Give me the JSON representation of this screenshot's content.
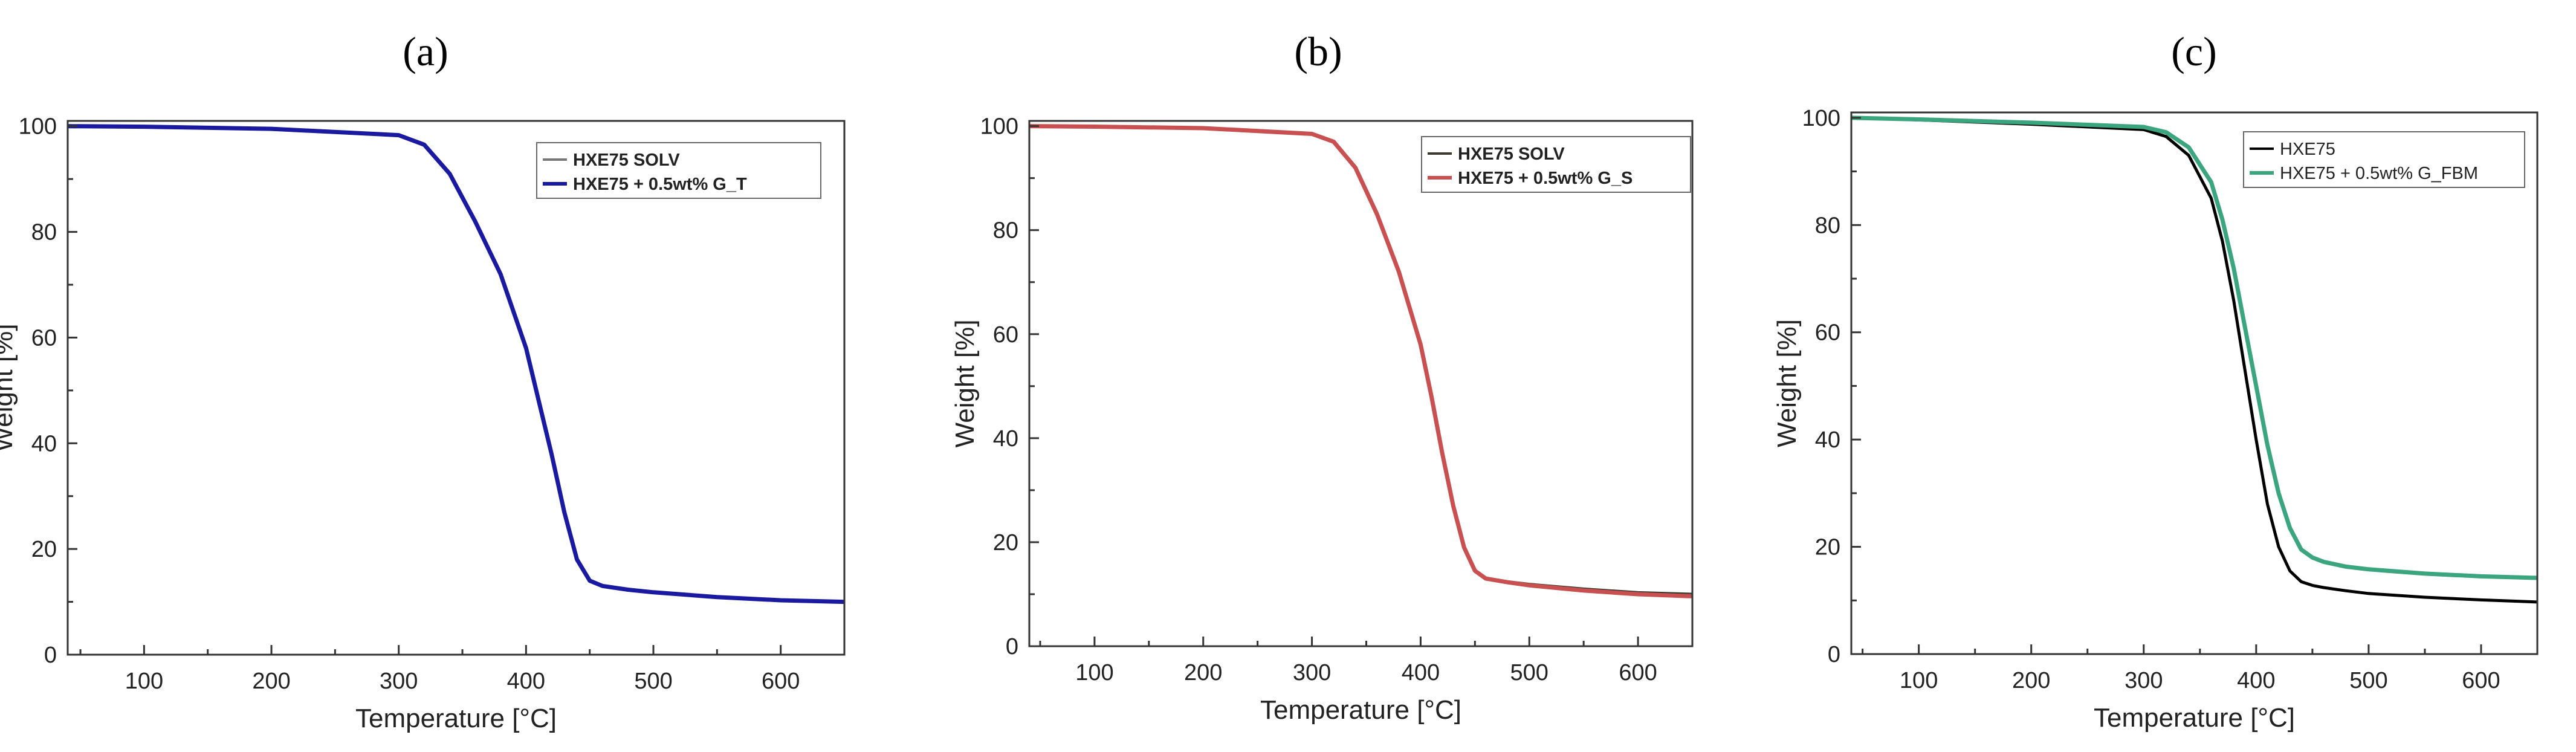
{
  "chart_data": [
    {
      "panel": "(a)",
      "type": "line",
      "xlabel": "Temperature [°C]",
      "ylabel": "Weight [%]",
      "xlim": [
        40,
        650
      ],
      "ylim": [
        0,
        101
      ],
      "xticks": [
        100,
        200,
        300,
        400,
        500,
        600
      ],
      "yticks": [
        0,
        20,
        40,
        60,
        80,
        100
      ],
      "legend_position": "top-right",
      "series": [
        {
          "name": "HXE75 SOLV",
          "color": "#777777",
          "x": [
            40,
            100,
            200,
            300,
            320,
            340,
            360,
            380,
            400,
            410,
            420,
            430,
            440,
            450,
            460,
            480,
            500,
            550,
            600,
            650
          ],
          "y": [
            100,
            99.9,
            99.5,
            98.3,
            96.5,
            91,
            82,
            72,
            58,
            48,
            38,
            27,
            18,
            14,
            13,
            12.3,
            11.8,
            10.9,
            10.3,
            10
          ]
        },
        {
          "name": "HXE75 + 0.5wt% G_T",
          "color": "#1a1aa0",
          "x": [
            40,
            100,
            200,
            300,
            320,
            340,
            360,
            380,
            400,
            410,
            420,
            430,
            440,
            450,
            460,
            480,
            500,
            550,
            600,
            650
          ],
          "y": [
            100,
            99.9,
            99.5,
            98.3,
            96.5,
            91,
            82,
            72,
            58,
            48,
            38,
            27,
            18,
            14,
            13,
            12.3,
            11.8,
            10.9,
            10.3,
            10
          ]
        }
      ]
    },
    {
      "panel": "(b)",
      "type": "line",
      "xlabel": "Temperature [°C]",
      "ylabel": "Weight [%]",
      "xlim": [
        40,
        650
      ],
      "ylim": [
        0,
        101
      ],
      "xticks": [
        100,
        200,
        300,
        400,
        500,
        600
      ],
      "yticks": [
        0,
        20,
        40,
        60,
        80,
        100
      ],
      "legend_position": "top-right",
      "series": [
        {
          "name": "HXE75 SOLV",
          "color": "#3a3a30",
          "x": [
            40,
            100,
            200,
            300,
            320,
            340,
            360,
            380,
            400,
            410,
            420,
            430,
            440,
            450,
            460,
            480,
            500,
            550,
            600,
            650
          ],
          "y": [
            100,
            99.9,
            99.6,
            98.5,
            97,
            92,
            83,
            72,
            58,
            48,
            37,
            27,
            19,
            14.5,
            13,
            12.4,
            11.9,
            11,
            10.3,
            10
          ]
        },
        {
          "name": "HXE75 + 0.5wt% G_S",
          "color": "#c85050",
          "x": [
            40,
            100,
            200,
            300,
            320,
            340,
            360,
            380,
            400,
            410,
            420,
            430,
            440,
            450,
            460,
            480,
            500,
            550,
            600,
            650
          ],
          "y": [
            100,
            99.9,
            99.6,
            98.5,
            97,
            92,
            83,
            72,
            58,
            48,
            37,
            27,
            19,
            14.5,
            13,
            12.3,
            11.7,
            10.7,
            10,
            9.6
          ]
        }
      ]
    },
    {
      "panel": "(c)",
      "type": "line",
      "xlabel": "Temperature [°C]",
      "ylabel": "Weight [%]",
      "xlim": [
        40,
        650
      ],
      "ylim": [
        0,
        101
      ],
      "xticks": [
        100,
        200,
        300,
        400,
        500,
        600
      ],
      "yticks": [
        0,
        20,
        40,
        60,
        80,
        100
      ],
      "legend_position": "top-right",
      "series": [
        {
          "name": "HXE75",
          "color": "#000000",
          "x": [
            40,
            100,
            200,
            300,
            320,
            340,
            360,
            370,
            380,
            390,
            400,
            410,
            420,
            430,
            440,
            450,
            460,
            480,
            500,
            550,
            600,
            650
          ],
          "y": [
            100,
            99.6,
            98.8,
            97.8,
            96.5,
            93,
            85,
            77,
            66,
            53,
            40,
            28,
            20,
            15.5,
            13.5,
            12.8,
            12.4,
            11.8,
            11.3,
            10.6,
            10.1,
            9.7
          ]
        },
        {
          "name": "HXE75 + 0.5wt% G_FBM",
          "color": "#3aa57e",
          "x": [
            40,
            100,
            200,
            300,
            320,
            340,
            360,
            370,
            380,
            390,
            400,
            410,
            420,
            430,
            440,
            450,
            460,
            480,
            500,
            550,
            600,
            650
          ],
          "y": [
            100,
            99.7,
            99.1,
            98.3,
            97.3,
            94.5,
            88,
            81,
            72,
            61,
            50,
            39,
            30,
            23.5,
            19.5,
            18,
            17.2,
            16.3,
            15.8,
            15,
            14.5,
            14.2
          ]
        }
      ]
    }
  ]
}
